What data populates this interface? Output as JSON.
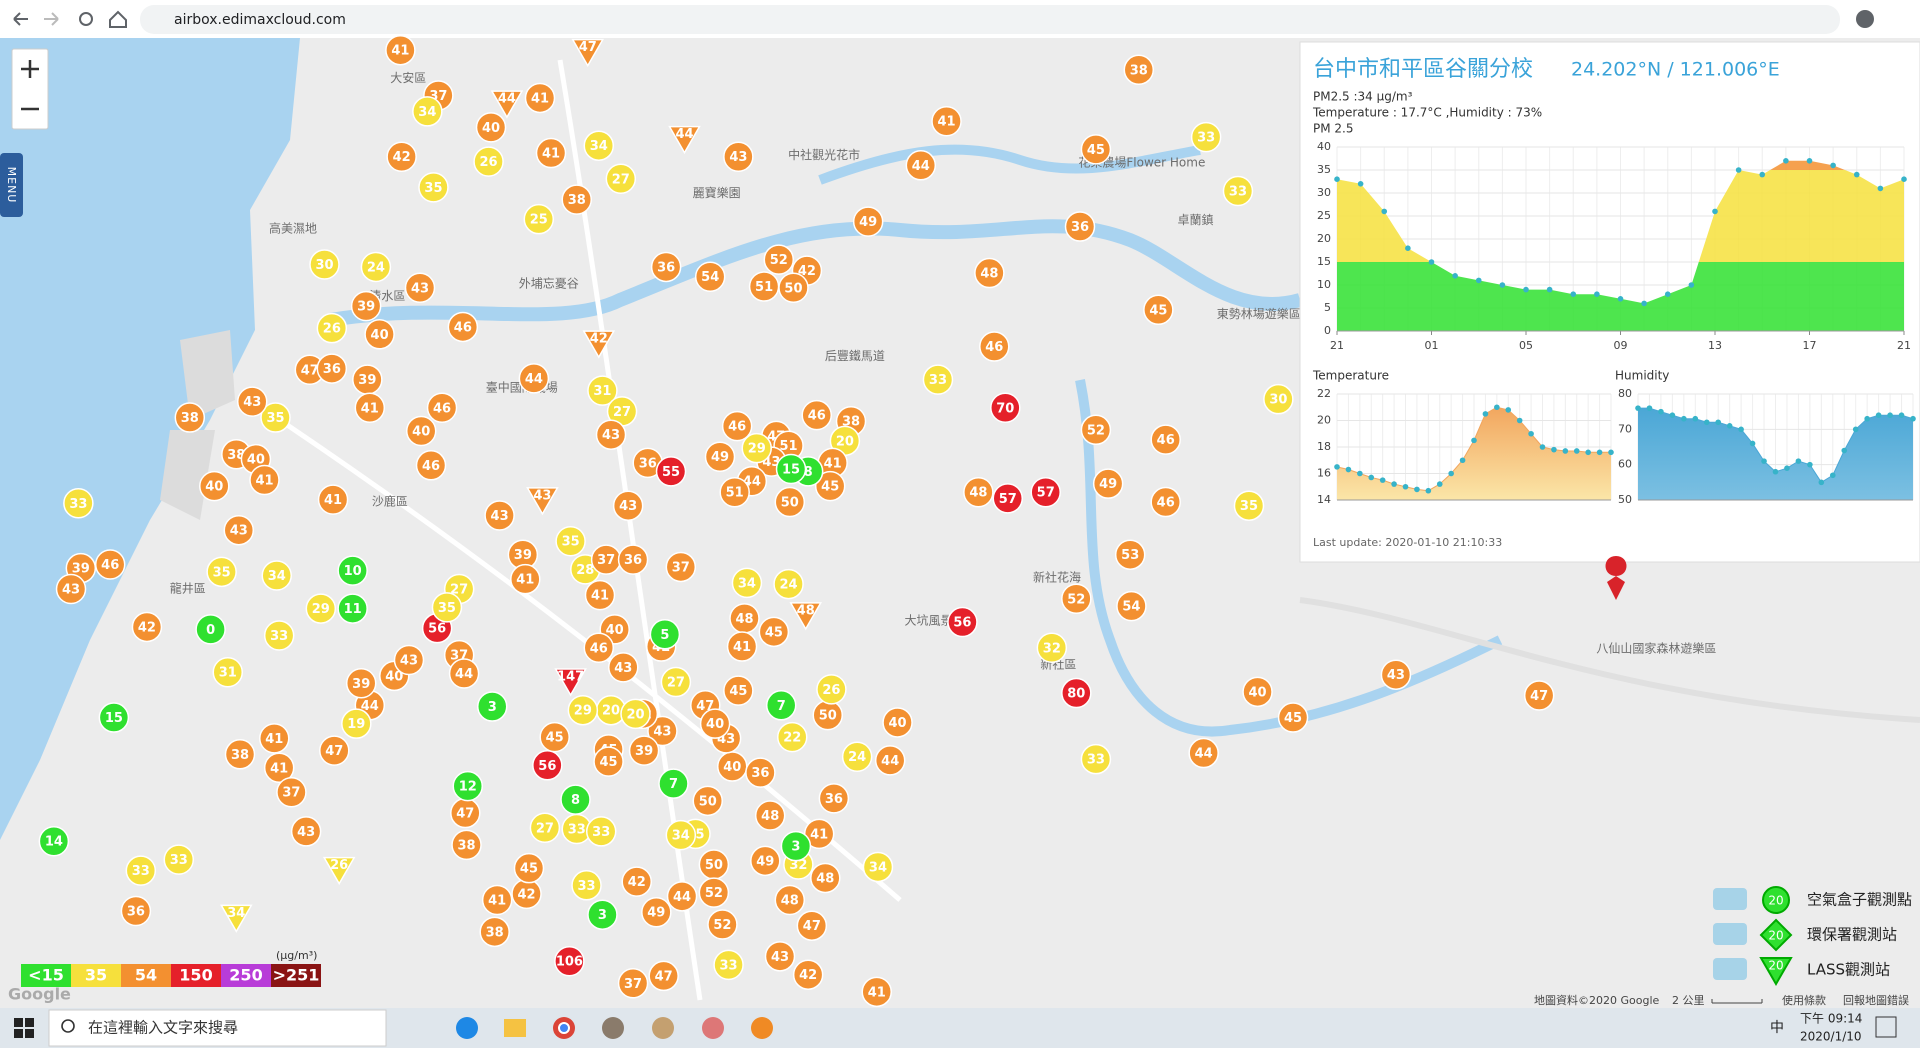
{
  "browser": {
    "url": "airbox.edimaxcloud.com"
  },
  "map": {
    "menu": "MENU",
    "places": [
      "大安區",
      "高美濕地",
      "清水區",
      "沙鹿區",
      "龍井區",
      "臺中國際機場",
      "外埔忘憂谷",
      "后豐鐵馬道",
      "麗寶樂園",
      "中社觀光花市",
      "花果農場Flower Home",
      "卓蘭鎮",
      "東勢林場遊樂區",
      "新社花海",
      "新社區",
      "大坑風景區",
      "八仙山國家森林遊樂區"
    ],
    "markers": [
      {
        "value": 41
      },
      {
        "value": 47,
        "shape": "triangle"
      },
      {
        "value": 37
      },
      {
        "value": 34
      },
      {
        "value": 44,
        "shape": "triangle"
      },
      {
        "value": 41
      },
      {
        "value": 40
      },
      {
        "value": 26
      },
      {
        "value": 41
      },
      {
        "value": 42
      },
      {
        "value": 35
      },
      {
        "value": 34
      },
      {
        "value": 27
      },
      {
        "value": 38
      },
      {
        "value": 25
      },
      {
        "value": 44,
        "shape": "triangle"
      },
      {
        "value": 43
      },
      {
        "value": 36
      },
      {
        "value": 54
      },
      {
        "value": 52
      },
      {
        "value": 42
      },
      {
        "value": 51
      },
      {
        "value": 50
      },
      {
        "value": 41
      },
      {
        "value": 44
      },
      {
        "value": 49
      },
      {
        "value": 48
      },
      {
        "value": 45
      },
      {
        "value": 38
      },
      {
        "value": 33
      },
      {
        "value": 33
      },
      {
        "value": 36
      },
      {
        "value": 45
      },
      {
        "value": 46
      },
      {
        "value": 33
      },
      {
        "value": 70
      },
      {
        "value": 52
      },
      {
        "value": 46
      },
      {
        "value": 48
      },
      {
        "value": 57
      },
      {
        "value": 57
      },
      {
        "value": 49
      },
      {
        "value": 46
      },
      {
        "value": 35
      },
      {
        "value": 30
      },
      {
        "value": 53
      },
      {
        "value": 52
      },
      {
        "value": 54
      },
      {
        "value": 56
      },
      {
        "value": 32
      },
      {
        "value": 80
      },
      {
        "value": 33
      },
      {
        "value": 44
      },
      {
        "value": 40
      },
      {
        "value": 45
      },
      {
        "value": 43
      },
      {
        "value": 47
      },
      {
        "value": 30
      },
      {
        "value": 24
      },
      {
        "value": 43
      },
      {
        "value": 39
      },
      {
        "value": 40
      },
      {
        "value": 26
      },
      {
        "value": 46
      },
      {
        "value": 47
      },
      {
        "value": 36
      },
      {
        "value": 39
      },
      {
        "value": 41
      },
      {
        "value": 35
      },
      {
        "value": 43
      },
      {
        "value": 38
      },
      {
        "value": 38
      },
      {
        "value": 40
      },
      {
        "value": 41
      },
      {
        "value": 40
      },
      {
        "value": 43
      },
      {
        "value": 40
      },
      {
        "value": 46
      },
      {
        "value": 46
      },
      {
        "value": 41
      },
      {
        "value": 44
      },
      {
        "value": 31
      },
      {
        "value": 27
      },
      {
        "value": 43
      },
      {
        "value": 36
      },
      {
        "value": 43
      },
      {
        "value": 33
      },
      {
        "value": 46
      },
      {
        "value": 39
      },
      {
        "value": 43
      },
      {
        "value": 35
      },
      {
        "value": 34
      },
      {
        "value": 10
      },
      {
        "value": 11
      },
      {
        "value": 29
      },
      {
        "value": 33
      },
      {
        "value": 0
      },
      {
        "value": 42
      },
      {
        "value": 31
      },
      {
        "value": 15
      },
      {
        "value": 38
      },
      {
        "value": 41
      },
      {
        "value": 41
      },
      {
        "value": 37
      },
      {
        "value": 47
      },
      {
        "value": 43
      },
      {
        "value": 14
      },
      {
        "value": 33
      },
      {
        "value": 33
      },
      {
        "value": 36
      },
      {
        "value": 34,
        "shape": "triangle"
      },
      {
        "value": 26,
        "shape": "triangle"
      },
      {
        "value": 44
      },
      {
        "value": 39
      },
      {
        "value": 40
      },
      {
        "value": 43
      },
      {
        "value": 19
      },
      {
        "value": 56
      },
      {
        "value": 27
      },
      {
        "value": 35
      },
      {
        "value": 37
      },
      {
        "value": 44
      },
      {
        "value": 3
      },
      {
        "value": 47
      },
      {
        "value": 12
      },
      {
        "value": 38
      },
      {
        "value": 38
      },
      {
        "value": 41
      },
      {
        "value": 42
      },
      {
        "value": 45
      },
      {
        "value": 106
      },
      {
        "value": 37
      },
      {
        "value": 47
      },
      {
        "value": 33
      },
      {
        "value": 42
      },
      {
        "value": 41
      },
      {
        "value": 43
      },
      {
        "value": 48
      },
      {
        "value": 47
      },
      {
        "value": 49
      },
      {
        "value": 32
      },
      {
        "value": 34
      },
      {
        "value": 48
      },
      {
        "value": 41
      },
      {
        "value": 3
      },
      {
        "value": 36
      },
      {
        "value": 44
      },
      {
        "value": 24
      },
      {
        "value": 40
      },
      {
        "value": 50
      },
      {
        "value": 26
      },
      {
        "value": 7
      },
      {
        "value": 22
      },
      {
        "value": 48
      },
      {
        "value": 50
      },
      {
        "value": 52
      },
      {
        "value": 3
      },
      {
        "value": 35
      },
      {
        "value": 7
      },
      {
        "value": 40
      },
      {
        "value": 36
      },
      {
        "value": 50
      },
      {
        "value": 43
      },
      {
        "value": 42
      },
      {
        "value": 39
      },
      {
        "value": 45
      },
      {
        "value": 20
      },
      {
        "value": 20
      },
      {
        "value": 27
      },
      {
        "value": 47
      },
      {
        "value": 45
      },
      {
        "value": 42
      },
      {
        "value": 5
      },
      {
        "value": 48
      },
      {
        "value": 45
      },
      {
        "value": 41
      },
      {
        "value": 40
      },
      {
        "value": 46
      },
      {
        "value": 43
      },
      {
        "value": 29
      },
      {
        "value": 41
      },
      {
        "value": 28
      },
      {
        "value": 35
      },
      {
        "value": 37
      },
      {
        "value": 36
      },
      {
        "value": 37
      },
      {
        "value": 39
      },
      {
        "value": 41
      },
      {
        "value": 43
      },
      {
        "value": 43,
        "shape": "triangle"
      },
      {
        "value": 42,
        "shape": "triangle"
      },
      {
        "value": 48,
        "shape": "triangle"
      },
      {
        "value": 147,
        "shape": "triangle"
      },
      {
        "value": 46
      },
      {
        "value": 47
      },
      {
        "value": 51
      },
      {
        "value": 43
      },
      {
        "value": 29
      },
      {
        "value": 49
      },
      {
        "value": 44
      },
      {
        "value": 50
      },
      {
        "value": 51
      },
      {
        "value": 55
      },
      {
        "value": 46
      },
      {
        "value": 38
      },
      {
        "value": 20
      },
      {
        "value": 41
      },
      {
        "value": 45
      },
      {
        "value": 8
      },
      {
        "value": 15
      },
      {
        "value": 34
      },
      {
        "value": 24
      },
      {
        "value": 56
      },
      {
        "value": 8
      },
      {
        "value": 33
      },
      {
        "value": 33
      },
      {
        "value": 27
      },
      {
        "value": 45
      },
      {
        "value": 45
      },
      {
        "value": 34
      },
      {
        "value": 52
      },
      {
        "value": 44
      },
      {
        "value": 42
      },
      {
        "value": 49
      },
      {
        "value": 33
      },
      {
        "value": 43
      },
      {
        "value": 40
      }
    ],
    "unit": "(μg/m³)",
    "legend": [
      {
        "label": "<15",
        "color": "#2fe02f"
      },
      {
        "label": "35",
        "color": "#f6e03c"
      },
      {
        "label": "54",
        "color": "#f39030"
      },
      {
        "label": "150",
        "color": "#e5202a"
      },
      {
        "label": "250",
        "color": "#b83cd8"
      },
      {
        "label": ">251",
        "color": "#8a1414"
      }
    ],
    "stations": {
      "icon": "20",
      "labels": [
        "空氣盒子觀測點",
        "環保署觀測站",
        "LASS觀測站"
      ]
    },
    "google": "Google",
    "attribution": "地圖資料©2020 Google",
    "scale": "2 公里",
    "terms": "使用條款",
    "report": "回報地圖錯誤"
  },
  "popup": {
    "title": "台中市和平區谷關分校",
    "coords": "24.202°N / 121.006°E",
    "pm": "PM2.5 :34 μg/m³",
    "reading": "Temperature : 17.7°C ,Humidity : 73%",
    "last_update": "Last update: 2020-01-10 21:10:33",
    "charts": [
      {
        "type": "banded-area",
        "title": "PM 2.5",
        "values": [
          33,
          32,
          26,
          18,
          15,
          12,
          11,
          10,
          9,
          9,
          8,
          8,
          7,
          6,
          8,
          10,
          26,
          35,
          34,
          37,
          37,
          36,
          34,
          31,
          33
        ],
        "xlim": [
          0,
          24
        ],
        "xticks": [
          {
            "value": 0,
            "label": "21"
          },
          {
            "value": 4,
            "label": "01"
          },
          {
            "value": 8,
            "label": "05"
          },
          {
            "value": 12,
            "label": "09"
          },
          {
            "value": 16,
            "label": "13"
          },
          {
            "value": 20,
            "label": "17"
          },
          {
            "value": 24,
            "label": "21"
          }
        ],
        "ylim": [
          0,
          40
        ],
        "yticks": [
          0,
          5,
          10,
          15,
          20,
          25,
          30,
          35,
          40
        ],
        "grid": true,
        "dot_color": "#37b3c9"
      },
      {
        "type": "area",
        "title": "Temperature",
        "values": [
          16.5,
          16.3,
          16,
          15.7,
          15.5,
          15.2,
          15,
          14.8,
          14.7,
          15.2,
          16,
          17,
          18.5,
          20.5,
          21,
          20.8,
          20,
          19,
          18,
          17.8,
          17.7,
          17.7,
          17.6,
          17.6,
          17.6
        ],
        "xlim": [
          0,
          24
        ],
        "ylim": [
          14,
          22
        ],
        "yticks": [
          14,
          16,
          18,
          20,
          22
        ],
        "grid": true,
        "color": "#f2a65e",
        "dot_color": "#37b3c9"
      },
      {
        "type": "area",
        "title": "Humidity",
        "values": [
          76,
          76,
          75,
          74,
          73,
          73,
          72,
          72,
          71,
          70,
          66,
          61,
          58,
          59,
          61,
          60,
          55,
          57,
          64,
          70,
          73,
          74,
          74,
          74,
          73
        ],
        "xlim": [
          0,
          24
        ],
        "ylim": [
          50,
          80
        ],
        "yticks": [
          50,
          60,
          70,
          80
        ],
        "grid": true,
        "color": "#4ba7d6",
        "dot_color": "#37b3c9"
      }
    ]
  },
  "taskbar": {
    "search": "在這裡輸入文字來搜尋",
    "time": "下午 09:14",
    "date": "2020/1/10",
    "ime": "中"
  }
}
